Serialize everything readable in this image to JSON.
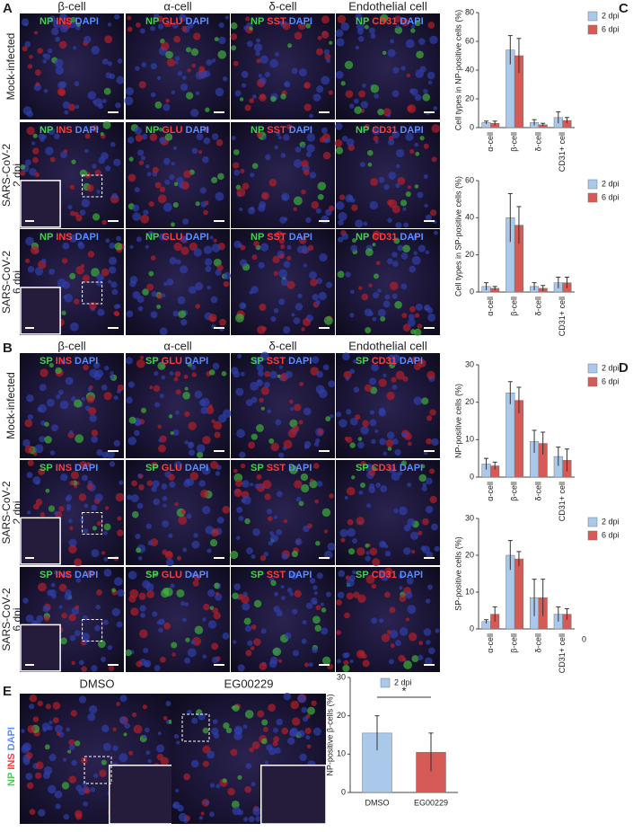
{
  "panel_a": {
    "label": "A",
    "columns": [
      "β-cell",
      "α-cell",
      "δ-cell",
      "Endothelial cell"
    ],
    "rows": [
      [
        "Mock-infected"
      ],
      [
        "SARS-CoV-2",
        "2 dpi"
      ],
      [
        "SARS-CoV-2",
        "6 dpi"
      ]
    ],
    "stains": [
      [
        "NP",
        "INS",
        "DAPI"
      ],
      [
        "NP",
        "GLU",
        "DAPI"
      ],
      [
        "NP",
        "SST",
        "DAPI"
      ],
      [
        "NP",
        "CD31",
        "DAPI"
      ]
    ]
  },
  "panel_b": {
    "label": "B",
    "columns": [
      "β-cell",
      "α-cell",
      "δ-cell",
      "Endothelial cell"
    ],
    "rows": [
      [
        "Mock-infected"
      ],
      [
        "SARS-CoV-2",
        "2 dpi"
      ],
      [
        "SARS-CoV-2",
        "6 dpi"
      ]
    ],
    "stains": [
      [
        "SP",
        "INS",
        "DAPI"
      ],
      [
        "SP",
        "GLU",
        "DAPI"
      ],
      [
        "SP",
        "SST",
        "DAPI"
      ],
      [
        "SP",
        "CD31",
        "DAPI"
      ]
    ]
  },
  "panel_e": {
    "label": "E",
    "columns": [
      "DMSO",
      "EG00229"
    ],
    "stain": [
      "NP",
      "INS",
      "DAPI"
    ]
  },
  "chart_labels": [
    "C",
    "D"
  ],
  "chart_data": [
    {
      "type": "bar",
      "y_label": "Cell types in NP-positive cells (%)",
      "categories": [
        "α-cell",
        "β-cell",
        "δ-cell",
        "CD31+ cell"
      ],
      "ylim": [
        0,
        80
      ],
      "yticks": [
        0,
        20,
        40,
        60,
        80
      ],
      "series": [
        {
          "name": "2 dpi",
          "color": "#a9c8ea",
          "values": [
            3.5,
            54,
            3.5,
            7
          ],
          "errors": [
            1,
            10,
            2,
            4
          ]
        },
        {
          "name": "6 dpi",
          "color": "#d65a55",
          "values": [
            3,
            50,
            2,
            5
          ],
          "errors": [
            1.5,
            12,
            1,
            2
          ]
        }
      ]
    },
    {
      "type": "bar",
      "y_label": "Cell types in SP-positive cells (%)",
      "categories": [
        "α-cell",
        "β-cell",
        "δ-cell",
        "CD31+ cell"
      ],
      "ylim": [
        0,
        60
      ],
      "yticks": [
        0,
        20,
        40,
        60
      ],
      "series": [
        {
          "name": "2 dpi",
          "color": "#a9c8ea",
          "values": [
            3,
            40,
            3,
            5
          ],
          "errors": [
            2,
            13,
            2,
            3
          ]
        },
        {
          "name": "6 dpi",
          "color": "#d65a55",
          "values": [
            2,
            36,
            2,
            5
          ],
          "errors": [
            1,
            10,
            1.5,
            3
          ]
        }
      ]
    },
    {
      "type": "bar",
      "y_label": "NP-positive cells (%)",
      "categories": [
        "α-cell",
        "β-cell",
        "δ-cell",
        "CD31+ cell"
      ],
      "ylim": [
        0,
        30
      ],
      "yticks": [
        0,
        10,
        20,
        30
      ],
      "series": [
        {
          "name": "2 dpi",
          "color": "#a9c8ea",
          "values": [
            3.5,
            22.5,
            9.5,
            5.5
          ],
          "errors": [
            1.5,
            3,
            3,
            2.5
          ]
        },
        {
          "name": "6 dpi",
          "color": "#d65a55",
          "values": [
            3,
            20.5,
            9,
            4.5
          ],
          "errors": [
            1,
            3.5,
            3,
            3
          ]
        }
      ]
    },
    {
      "type": "bar",
      "y_label": "SP-positive cells (%)",
      "categories": [
        "α-cell",
        "β-cell",
        "δ-cell",
        "CD31+ cell"
      ],
      "ylim": [
        0,
        30
      ],
      "yticks": [
        0,
        10,
        20,
        30
      ],
      "annotation": "0",
      "series": [
        {
          "name": "2 dpi",
          "color": "#a9c8ea",
          "values": [
            2,
            20,
            8.5,
            4
          ],
          "errors": [
            0.5,
            4,
            5,
            2
          ]
        },
        {
          "name": "6 dpi",
          "color": "#d65a55",
          "values": [
            4,
            19,
            8.5,
            4
          ],
          "errors": [
            2,
            2,
            5,
            1.5
          ]
        }
      ]
    },
    {
      "type": "bar",
      "y_label": "NP-positive β-cells (%)",
      "categories": [
        "DMSO",
        "EG00229"
      ],
      "ylim": [
        0,
        30
      ],
      "yticks": [
        0,
        10,
        20,
        30
      ],
      "annotation": "*",
      "bar_colors": [
        "#a9c8ea",
        "#d65a55"
      ],
      "series": [
        {
          "name": "2 dpi",
          "color": "#a9c8ea",
          "values": [
            15.5,
            10.5
          ],
          "errors": [
            4.5,
            5
          ]
        }
      ]
    }
  ]
}
